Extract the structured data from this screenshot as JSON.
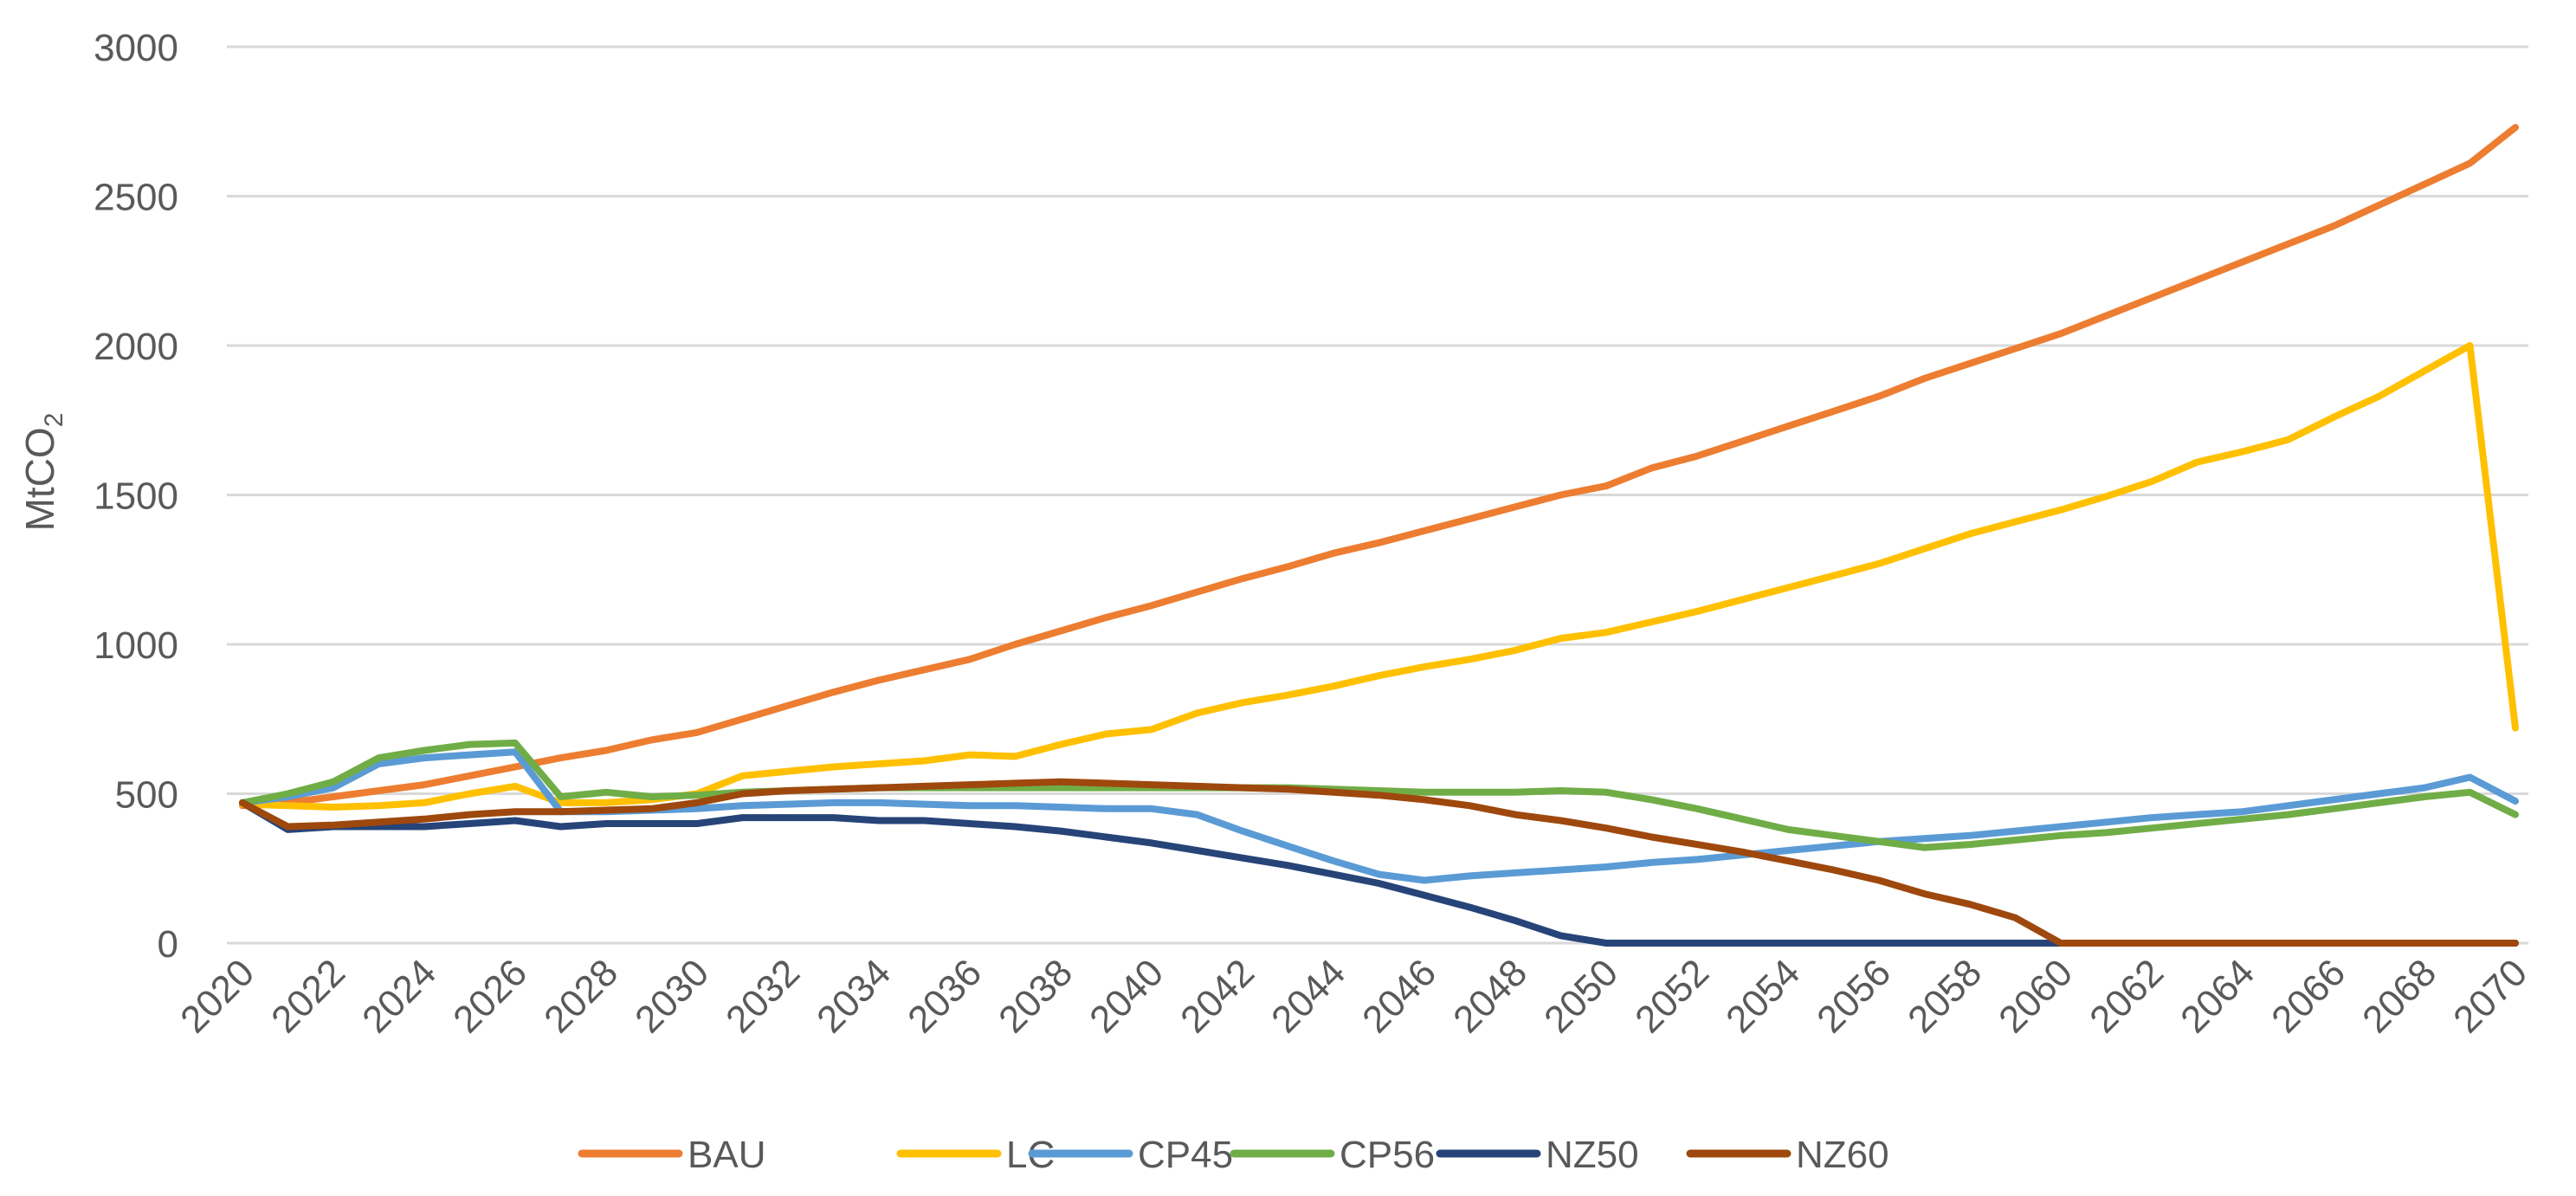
{
  "chart_data": {
    "type": "line",
    "title": "",
    "xlabel": "",
    "ylabel": "MtCO",
    "ylabel_subscript": "2",
    "ylim": [
      0,
      3000
    ],
    "yticks": [
      "0",
      "500",
      "1000",
      "1500",
      "2000",
      "2500",
      "3000"
    ],
    "xlim": [
      2020,
      2070
    ],
    "xticks": [
      "2020",
      "2022",
      "2024",
      "2026",
      "2028",
      "2030",
      "2032",
      "2034",
      "2036",
      "2038",
      "2040",
      "2042",
      "2044",
      "2046",
      "2048",
      "2050",
      "2052",
      "2054",
      "2056",
      "2058",
      "2060",
      "2062",
      "2064",
      "2066",
      "2068",
      "2070"
    ],
    "grid": true,
    "legend_position": "bottom",
    "x": [
      2020,
      2021,
      2022,
      2023,
      2024,
      2025,
      2026,
      2027,
      2028,
      2029,
      2030,
      2031,
      2032,
      2033,
      2034,
      2035,
      2036,
      2037,
      2038,
      2039,
      2040,
      2041,
      2042,
      2043,
      2044,
      2045,
      2046,
      2047,
      2048,
      2049,
      2050,
      2051,
      2052,
      2053,
      2054,
      2055,
      2056,
      2057,
      2058,
      2059,
      2060,
      2061,
      2062,
      2063,
      2064,
      2065,
      2066,
      2067,
      2068,
      2069,
      2070
    ],
    "series": [
      {
        "name": "BAU",
        "color": "#ED7D31",
        "values": [
          460,
          470,
          490,
          510,
          530,
          560,
          590,
          620,
          645,
          680,
          705,
          750,
          795,
          840,
          880,
          915,
          950,
          1000,
          1045,
          1090,
          1130,
          1175,
          1220,
          1260,
          1305,
          1340,
          1380,
          1420,
          1460,
          1500,
          1530,
          1590,
          1630,
          1680,
          1730,
          1780,
          1830,
          1890,
          1940,
          1990,
          2040,
          2100,
          2160,
          2220,
          2280,
          2340,
          2400,
          2470,
          2540,
          2610,
          2730
        ]
      },
      {
        "name": "LC",
        "color": "#FFC000",
        "values": [
          465,
          460,
          455,
          460,
          470,
          500,
          525,
          470,
          470,
          480,
          500,
          560,
          575,
          590,
          600,
          610,
          630,
          625,
          665,
          700,
          715,
          770,
          805,
          830,
          860,
          895,
          925,
          950,
          980,
          1020,
          1040,
          1075,
          1110,
          1150,
          1190,
          1230,
          1270,
          1320,
          1370,
          1410,
          1450,
          1495,
          1545,
          1610,
          1645,
          1685,
          1760,
          1830,
          1915,
          2000,
          720
        ]
      },
      {
        "name": "CP45",
        "color": "#5B9BD5",
        "values": [
          470,
          490,
          520,
          600,
          620,
          630,
          640,
          440,
          440,
          445,
          450,
          460,
          465,
          470,
          470,
          465,
          460,
          460,
          455,
          450,
          450,
          430,
          375,
          325,
          275,
          230,
          210,
          225,
          235,
          245,
          255,
          270,
          280,
          295,
          310,
          325,
          340,
          350,
          360,
          375,
          390,
          405,
          420,
          430,
          440,
          460,
          480,
          500,
          520,
          555,
          475
        ]
      },
      {
        "name": "CP56",
        "color": "#70AD47",
        "values": [
          470,
          500,
          540,
          620,
          645,
          665,
          670,
          490,
          505,
          490,
          495,
          505,
          510,
          515,
          520,
          520,
          520,
          520,
          520,
          520,
          520,
          520,
          520,
          520,
          515,
          510,
          505,
          505,
          505,
          510,
          505,
          480,
          450,
          415,
          380,
          360,
          340,
          320,
          330,
          345,
          360,
          370,
          385,
          400,
          415,
          430,
          450,
          470,
          490,
          505,
          430
        ]
      },
      {
        "name": "NZ50",
        "color": "#264478",
        "values": [
          470,
          380,
          390,
          390,
          390,
          400,
          410,
          390,
          400,
          400,
          400,
          420,
          420,
          420,
          410,
          410,
          400,
          390,
          375,
          355,
          335,
          310,
          285,
          260,
          230,
          200,
          160,
          120,
          75,
          25,
          0,
          0,
          0,
          0,
          0,
          0,
          0,
          0,
          0,
          0,
          0,
          0,
          0,
          0,
          0,
          0,
          0,
          0,
          0,
          0,
          0
        ]
      },
      {
        "name": "NZ60",
        "color": "#9E480E",
        "values": [
          470,
          390,
          395,
          405,
          415,
          430,
          440,
          440,
          445,
          450,
          470,
          500,
          510,
          515,
          520,
          525,
          530,
          535,
          540,
          535,
          530,
          525,
          520,
          515,
          505,
          495,
          480,
          460,
          430,
          410,
          385,
          355,
          330,
          305,
          275,
          245,
          210,
          165,
          130,
          85,
          0,
          0,
          0,
          0,
          0,
          0,
          0,
          0,
          0,
          0,
          0
        ]
      }
    ]
  }
}
